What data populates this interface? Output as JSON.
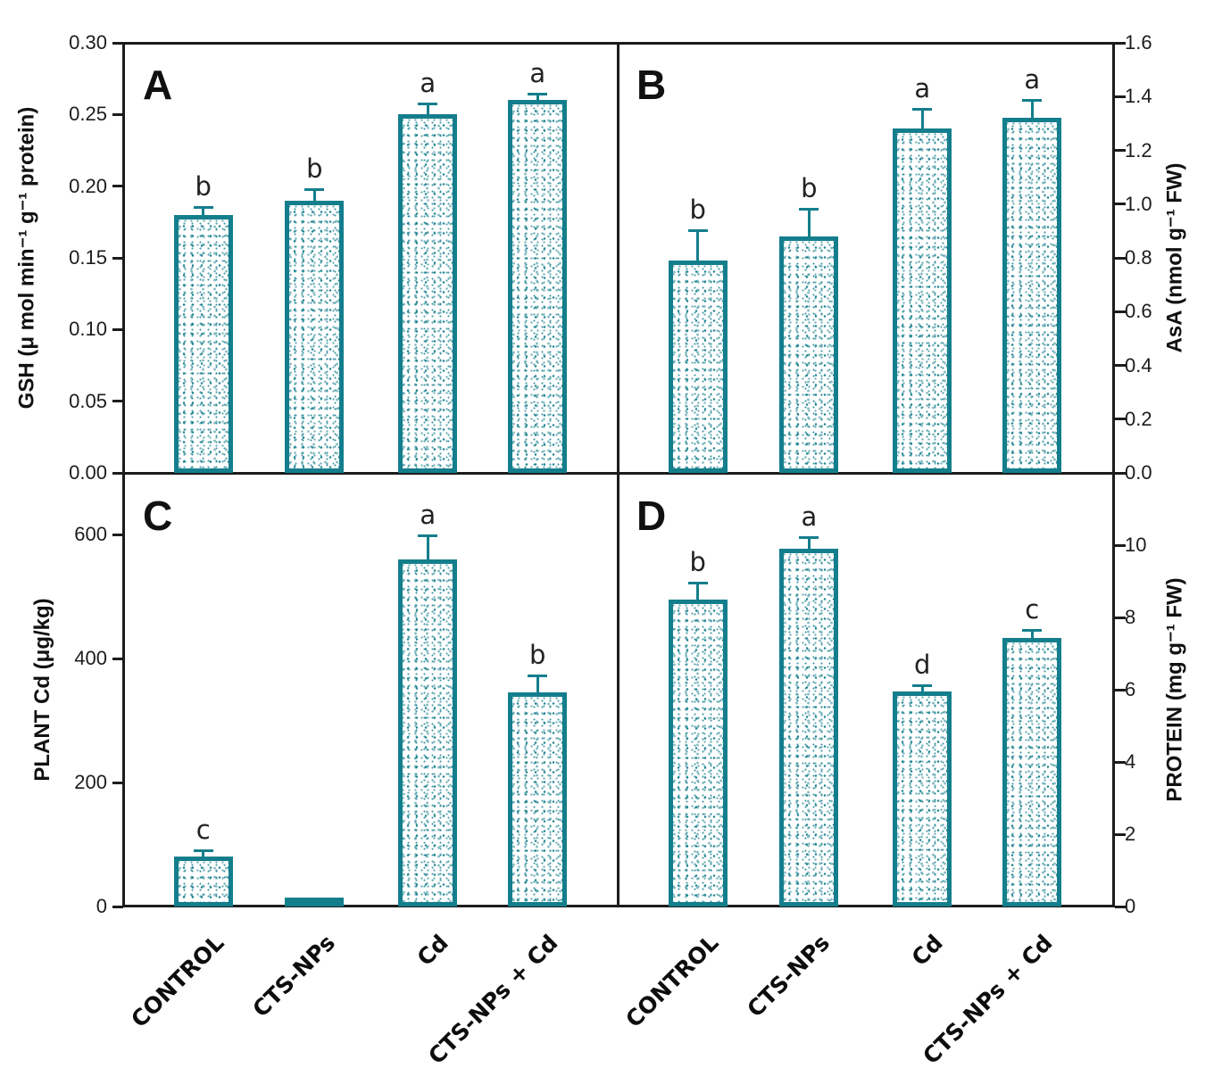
{
  "colors": {
    "bar_outline": "#147e8c",
    "axis": "#1c1c1c",
    "letter": "#222222"
  },
  "categories": [
    "CONTROL",
    "CTS-NPs",
    "Cd",
    "CTS-NPs + Cd"
  ],
  "chart_data": [
    {
      "type": "bar",
      "panel": "A",
      "ylabel": "GSH (μ mol min⁻¹ g⁻¹ protein)",
      "axis_side": "left",
      "ylim": [
        0,
        0.3
      ],
      "yticks": [
        "0.00",
        "0.05",
        "0.10",
        "0.15",
        "0.20",
        "0.25",
        "0.30"
      ],
      "grid": false,
      "categories": [
        "CONTROL",
        "CTS-NPs",
        "Cd",
        "CTS-NPs + Cd"
      ],
      "values": [
        0.18,
        0.19,
        0.25,
        0.26
      ],
      "errors": [
        0.005,
        0.007,
        0.007,
        0.004
      ],
      "sig_letters": [
        "b",
        "b",
        "a",
        "a"
      ]
    },
    {
      "type": "bar",
      "panel": "B",
      "ylabel": "AsA (nmol g⁻¹ FW)",
      "axis_side": "right",
      "ylim": [
        0,
        1.6
      ],
      "yticks": [
        "0.0",
        "0.2",
        "0.4",
        "0.6",
        "0.8",
        "1.0",
        "1.2",
        "1.4",
        "1.6"
      ],
      "grid": false,
      "categories": [
        "CONTROL",
        "CTS-NPs",
        "Cd",
        "CTS-NPs + Cd"
      ],
      "values": [
        0.79,
        0.88,
        1.28,
        1.32
      ],
      "errors": [
        0.11,
        0.1,
        0.07,
        0.065
      ],
      "sig_letters": [
        "b",
        "b",
        "a",
        "a"
      ]
    },
    {
      "type": "bar",
      "panel": "C",
      "ylabel": "PLANT Cd (μg/kg)",
      "axis_side": "left",
      "ylim": [
        0,
        700
      ],
      "yticks": [
        "0",
        "200",
        "400",
        "600"
      ],
      "grid": false,
      "categories": [
        "CONTROL",
        "CTS-NPs",
        "Cd",
        "CTS-NPs + Cd"
      ],
      "values": [
        81,
        12,
        560,
        345
      ],
      "errors": [
        9,
        2,
        38,
        27
      ],
      "sig_letters": [
        "c",
        "",
        "a",
        "b"
      ]
    },
    {
      "type": "bar",
      "panel": "D",
      "ylabel": "PROTEIN (mg g⁻¹ FW)",
      "axis_side": "right",
      "ylim": [
        0,
        12
      ],
      "yticks": [
        "0",
        "2",
        "4",
        "6",
        "8",
        "10"
      ],
      "grid": false,
      "categories": [
        "CONTROL",
        "CTS-NPs",
        "Cd",
        "CTS-NPs + Cd"
      ],
      "values": [
        8.5,
        9.9,
        5.95,
        7.42
      ],
      "errors": [
        0.45,
        0.3,
        0.15,
        0.2
      ],
      "sig_letters": [
        "b",
        "a",
        "d",
        "c"
      ]
    }
  ]
}
